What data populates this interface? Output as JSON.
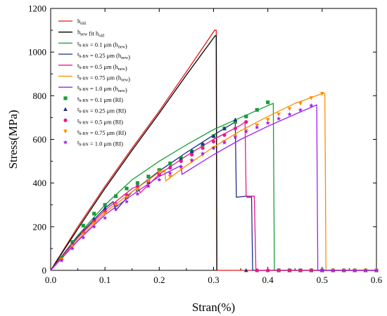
{
  "chart_data": {
    "type": "line",
    "xlabel": "Stran(%)",
    "ylabel": "Stress(MPa)",
    "xlim": [
      0,
      0.6
    ],
    "ylim": [
      0,
      1200
    ],
    "xticks": [
      "0.0",
      "0.1",
      "0.2",
      "0.3",
      "0.4",
      "0.5",
      "0.6"
    ],
    "yticks": [
      "0",
      "200",
      "400",
      "600",
      "800",
      "1000",
      "1200"
    ],
    "legend_position": "top-left",
    "series": [
      {
        "kind": "line",
        "color": "#e41a1c",
        "label": "h_old",
        "label_main": "h",
        "label_sub": "old",
        "points": [
          [
            0,
            0
          ],
          [
            0.05,
            200
          ],
          [
            0.1,
            385
          ],
          [
            0.15,
            560
          ],
          [
            0.2,
            730
          ],
          [
            0.25,
            910
          ],
          [
            0.302,
            1100
          ],
          [
            0.305,
            1100
          ],
          [
            0.306,
            0
          ],
          [
            0.6,
            0
          ]
        ]
      },
      {
        "kind": "line",
        "color": "#000000",
        "label": "h_new fit h_old",
        "label_main": "h",
        "label_sub": "new",
        "label_mid": "  fit h",
        "label_sub2": "old",
        "points": [
          [
            0,
            0
          ],
          [
            0.05,
            190
          ],
          [
            0.1,
            375
          ],
          [
            0.15,
            550
          ],
          [
            0.2,
            720
          ],
          [
            0.25,
            895
          ],
          [
            0.303,
            1075
          ],
          [
            0.305,
            1075
          ],
          [
            0.306,
            0
          ]
        ]
      },
      {
        "kind": "line",
        "color": "#1a9e3a",
        "label": "t_h-BN = 0.1 μm (h_new)",
        "label_main": "t",
        "label_sub": "h-BN",
        "label_mid": " = 0.1 μm (h",
        "label_sub2": "new",
        "label_end": ")",
        "points": [
          [
            0,
            0
          ],
          [
            0.05,
            160
          ],
          [
            0.1,
            300
          ],
          [
            0.15,
            415
          ],
          [
            0.2,
            500
          ],
          [
            0.25,
            575
          ],
          [
            0.3,
            645
          ],
          [
            0.35,
            700
          ],
          [
            0.4,
            755
          ],
          [
            0.41,
            765
          ],
          [
            0.412,
            0
          ],
          [
            0.6,
            0
          ]
        ]
      },
      {
        "kind": "line",
        "color": "#1f2d8c",
        "label": "t_h-BN = 0.25 μm (h_new)",
        "label_main": "t",
        "label_sub": "h-BN",
        "label_mid": " = 0.25 μm (h",
        "label_sub2": "new",
        "label_end": ")",
        "points": [
          [
            0,
            0
          ],
          [
            0.05,
            155
          ],
          [
            0.1,
            285
          ],
          [
            0.115,
            315
          ],
          [
            0.12,
            275
          ],
          [
            0.15,
            360
          ],
          [
            0.2,
            455
          ],
          [
            0.25,
            540
          ],
          [
            0.3,
            620
          ],
          [
            0.34,
            680
          ],
          [
            0.342,
            335
          ],
          [
            0.36,
            340
          ],
          [
            0.362,
            335
          ],
          [
            0.37,
            335
          ],
          [
            0.372,
            0
          ],
          [
            0.6,
            0
          ]
        ]
      },
      {
        "kind": "line",
        "color": "#e8198b",
        "label": "t_h-BN = 0.5 μm (h_new)",
        "label_main": "t",
        "label_sub": "h-BN",
        "label_mid": " = 0.5 μm (h",
        "label_sub2": "new",
        "label_end": ")",
        "points": [
          [
            0,
            0
          ],
          [
            0.05,
            150
          ],
          [
            0.1,
            275
          ],
          [
            0.15,
            375
          ],
          [
            0.16,
            385
          ],
          [
            0.165,
            355
          ],
          [
            0.2,
            440
          ],
          [
            0.25,
            525
          ],
          [
            0.3,
            600
          ],
          [
            0.35,
            665
          ],
          [
            0.358,
            680
          ],
          [
            0.36,
            340
          ],
          [
            0.375,
            340
          ],
          [
            0.378,
            0
          ],
          [
            0.6,
            0
          ]
        ]
      },
      {
        "kind": "line",
        "color": "#ff8c00",
        "label": "t_h-BN = 0.75 μm (h_new)",
        "label_main": "t",
        "label_sub": "h-BN",
        "label_mid": " = 0.75 μm (h",
        "label_sub2": "new",
        "label_end": ")",
        "points": [
          [
            0,
            0
          ],
          [
            0.05,
            140
          ],
          [
            0.1,
            265
          ],
          [
            0.15,
            360
          ],
          [
            0.2,
            450
          ],
          [
            0.21,
            460
          ],
          [
            0.212,
            410
          ],
          [
            0.25,
            480
          ],
          [
            0.3,
            565
          ],
          [
            0.35,
            640
          ],
          [
            0.4,
            705
          ],
          [
            0.45,
            765
          ],
          [
            0.5,
            810
          ],
          [
            0.505,
            810
          ],
          [
            0.507,
            0
          ],
          [
            0.6,
            0
          ]
        ]
      },
      {
        "kind": "line",
        "color": "#a020f0",
        "label": "t_h-BN = 1.0 μm (h_new)",
        "label_main": "t",
        "label_sub": "h-BN",
        "label_mid": " = 1.0 μm (h",
        "label_sub2": "new",
        "label_end": ")",
        "points": [
          [
            0,
            0
          ],
          [
            0.05,
            135
          ],
          [
            0.1,
            255
          ],
          [
            0.15,
            345
          ],
          [
            0.2,
            430
          ],
          [
            0.24,
            480
          ],
          [
            0.242,
            440
          ],
          [
            0.3,
            530
          ],
          [
            0.35,
            600
          ],
          [
            0.4,
            660
          ],
          [
            0.45,
            715
          ],
          [
            0.49,
            758
          ],
          [
            0.492,
            0
          ],
          [
            0.6,
            0
          ]
        ]
      },
      {
        "kind": "marker",
        "marker": "square",
        "color": "#1a9e3a",
        "label": "t_h-BN = 0.1 μm (RI)",
        "label_main": "t",
        "label_sub": "h-BN",
        "label_mid": " = 0.1 μm (RI)",
        "points": [
          [
            0.02,
            60
          ],
          [
            0.04,
            130
          ],
          [
            0.06,
            205
          ],
          [
            0.08,
            260
          ],
          [
            0.1,
            300
          ],
          [
            0.12,
            340
          ],
          [
            0.14,
            375
          ],
          [
            0.16,
            400
          ],
          [
            0.18,
            430
          ],
          [
            0.2,
            460
          ],
          [
            0.22,
            490
          ],
          [
            0.24,
            515
          ],
          [
            0.26,
            545
          ],
          [
            0.28,
            575
          ],
          [
            0.3,
            615
          ],
          [
            0.32,
            650
          ],
          [
            0.34,
            680
          ],
          [
            0.36,
            705
          ],
          [
            0.38,
            735
          ],
          [
            0.4,
            770
          ],
          [
            0.42,
            0
          ],
          [
            0.44,
            0
          ],
          [
            0.46,
            0
          ],
          [
            0.48,
            0
          ],
          [
            0.5,
            0
          ],
          [
            0.52,
            0
          ],
          [
            0.54,
            0
          ],
          [
            0.56,
            0
          ],
          [
            0.58,
            0
          ],
          [
            0.6,
            0
          ]
        ]
      },
      {
        "kind": "marker",
        "marker": "triangle",
        "color": "#1f2d8c",
        "label": "t_h-BN = 0.25 μm (RI)",
        "label_main": "t",
        "label_sub": "h-BN",
        "label_mid": " = 0.25 μm (RI)",
        "points": [
          [
            0.02,
            55
          ],
          [
            0.04,
            120
          ],
          [
            0.06,
            180
          ],
          [
            0.08,
            235
          ],
          [
            0.1,
            285
          ],
          [
            0.12,
            300
          ],
          [
            0.14,
            335
          ],
          [
            0.16,
            370
          ],
          [
            0.18,
            405
          ],
          [
            0.2,
            440
          ],
          [
            0.22,
            475
          ],
          [
            0.24,
            510
          ],
          [
            0.26,
            545
          ],
          [
            0.28,
            580
          ],
          [
            0.3,
            615
          ],
          [
            0.32,
            650
          ],
          [
            0.34,
            690
          ],
          [
            0.36,
            0
          ],
          [
            0.38,
            0
          ],
          [
            0.4,
            0
          ],
          [
            0.42,
            0
          ],
          [
            0.44,
            0
          ],
          [
            0.46,
            0
          ],
          [
            0.48,
            0
          ],
          [
            0.5,
            0
          ],
          [
            0.52,
            0
          ],
          [
            0.54,
            0
          ],
          [
            0.56,
            0
          ],
          [
            0.58,
            0
          ],
          [
            0.6,
            0
          ]
        ]
      },
      {
        "kind": "marker",
        "marker": "circle",
        "color": "#e8198b",
        "label": "t_h-BN = 0.5 μm (RI)",
        "label_main": "t",
        "label_sub": "h-BN",
        "label_mid": " = 0.5 μm (RI)",
        "points": [
          [
            0.02,
            55
          ],
          [
            0.04,
            115
          ],
          [
            0.06,
            175
          ],
          [
            0.08,
            225
          ],
          [
            0.1,
            270
          ],
          [
            0.12,
            305
          ],
          [
            0.14,
            345
          ],
          [
            0.16,
            385
          ],
          [
            0.18,
            410
          ],
          [
            0.2,
            440
          ],
          [
            0.22,
            470
          ],
          [
            0.24,
            500
          ],
          [
            0.26,
            530
          ],
          [
            0.28,
            560
          ],
          [
            0.3,
            590
          ],
          [
            0.32,
            620
          ],
          [
            0.34,
            650
          ],
          [
            0.36,
            680
          ],
          [
            0.38,
            0
          ],
          [
            0.4,
            0
          ],
          [
            0.42,
            0
          ],
          [
            0.44,
            0
          ],
          [
            0.46,
            0
          ],
          [
            0.48,
            0
          ],
          [
            0.5,
            0
          ],
          [
            0.52,
            0
          ],
          [
            0.54,
            0
          ],
          [
            0.56,
            0
          ],
          [
            0.58,
            0
          ],
          [
            0.6,
            0
          ]
        ]
      },
      {
        "kind": "marker",
        "marker": "triangle-down",
        "color": "#ff8c00",
        "label": "t_h-BN = 0.75 μm (RI)",
        "label_main": "t",
        "label_sub": "h-BN",
        "label_mid": " = 0.75 μm (RI)",
        "points": [
          [
            0.02,
            50
          ],
          [
            0.04,
            110
          ],
          [
            0.06,
            165
          ],
          [
            0.08,
            215
          ],
          [
            0.1,
            260
          ],
          [
            0.12,
            300
          ],
          [
            0.14,
            335
          ],
          [
            0.16,
            370
          ],
          [
            0.18,
            410
          ],
          [
            0.2,
            450
          ],
          [
            0.22,
            430
          ],
          [
            0.24,
            470
          ],
          [
            0.26,
            500
          ],
          [
            0.28,
            530
          ],
          [
            0.3,
            560
          ],
          [
            0.32,
            590
          ],
          [
            0.34,
            615
          ],
          [
            0.36,
            640
          ],
          [
            0.38,
            665
          ],
          [
            0.4,
            690
          ],
          [
            0.42,
            715
          ],
          [
            0.44,
            740
          ],
          [
            0.46,
            765
          ],
          [
            0.48,
            790
          ],
          [
            0.5,
            810
          ],
          [
            0.52,
            0
          ],
          [
            0.54,
            0
          ],
          [
            0.56,
            0
          ],
          [
            0.58,
            0
          ],
          [
            0.6,
            0
          ]
        ]
      },
      {
        "kind": "marker",
        "marker": "star",
        "color": "#a020f0",
        "label": "t_h-BN = 1.0 μm (RI)",
        "label_main": "t",
        "label_sub": "h-BN",
        "label_mid": " = 1.0 μm (RI)",
        "points": [
          [
            0.02,
            45
          ],
          [
            0.04,
            100
          ],
          [
            0.06,
            150
          ],
          [
            0.08,
            200
          ],
          [
            0.1,
            240
          ],
          [
            0.12,
            280
          ],
          [
            0.14,
            315
          ],
          [
            0.16,
            350
          ],
          [
            0.18,
            385
          ],
          [
            0.2,
            415
          ],
          [
            0.22,
            445
          ],
          [
            0.24,
            475
          ],
          [
            0.26,
            505
          ],
          [
            0.28,
            535
          ],
          [
            0.3,
            560
          ],
          [
            0.32,
            585
          ],
          [
            0.34,
            610
          ],
          [
            0.36,
            635
          ],
          [
            0.38,
            655
          ],
          [
            0.4,
            675
          ],
          [
            0.42,
            695
          ],
          [
            0.44,
            715
          ],
          [
            0.46,
            735
          ],
          [
            0.48,
            755
          ],
          [
            0.5,
            0
          ],
          [
            0.52,
            0
          ],
          [
            0.54,
            0
          ],
          [
            0.56,
            0
          ],
          [
            0.58,
            0
          ],
          [
            0.6,
            0
          ]
        ]
      }
    ]
  }
}
